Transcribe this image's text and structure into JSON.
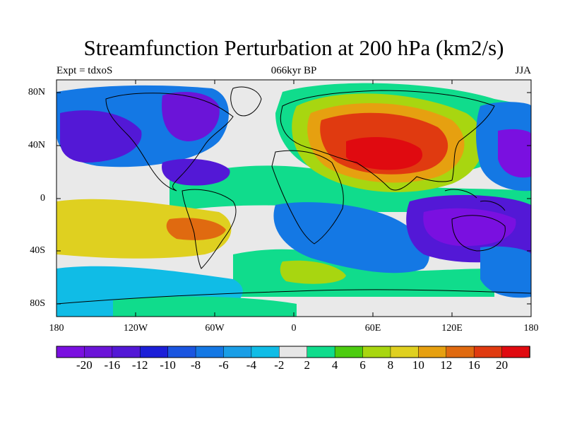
{
  "header": {
    "title": "Streamfunction Perturbation at 200 hPa (km2/s)",
    "left_label": "Expt = tdxoS",
    "center_label": "066kyr BP",
    "right_label": "JJA"
  },
  "map": {
    "lat_labels": [
      "80N",
      "40N",
      "0",
      "40S",
      "80S"
    ],
    "lon_labels": [
      "180",
      "120W",
      "60W",
      "0",
      "60E",
      "120E",
      "180"
    ],
    "land_fill": "#e9e9e9"
  },
  "colorbar": {
    "labels": [
      "-20",
      "-16",
      "-12",
      "-10",
      "-8",
      "-6",
      "-4",
      "-2",
      "2",
      "4",
      "6",
      "8",
      "10",
      "12",
      "16",
      "20"
    ],
    "colors": [
      "#7a10e0",
      "#6b14d8",
      "#5318d6",
      "#1c1fd8",
      "#1a55e0",
      "#1478e4",
      "#1a9ee6",
      "#10bce6",
      "#e6e6e6",
      "#10dc8c",
      "#4ccc10",
      "#a8d610",
      "#dfd020",
      "#e6a010",
      "#e06a10",
      "#e03a10",
      "#e00a10"
    ]
  }
}
